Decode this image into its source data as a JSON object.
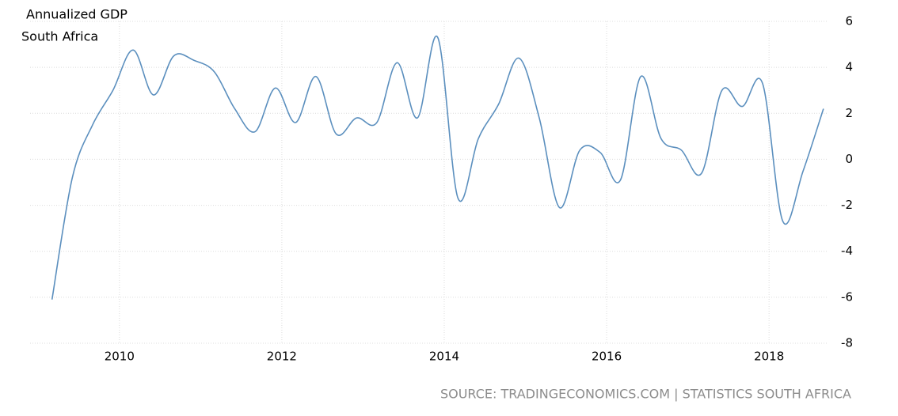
{
  "chart_data": {
    "type": "line",
    "title": "Annualized GDP",
    "subtitle": "South Africa",
    "source": "SOURCE: TRADINGECONOMICS.COM | STATISTICS SOUTH AFRICA",
    "x": [
      2009.17,
      2009.42,
      2009.67,
      2009.92,
      2010.17,
      2010.42,
      2010.67,
      2010.92,
      2011.17,
      2011.42,
      2011.67,
      2011.92,
      2012.17,
      2012.42,
      2012.67,
      2012.92,
      2013.17,
      2013.42,
      2013.67,
      2013.92,
      2014.17,
      2014.42,
      2014.67,
      2014.92,
      2015.17,
      2015.42,
      2015.67,
      2015.92,
      2016.17,
      2016.42,
      2016.67,
      2016.92,
      2017.17,
      2017.42,
      2017.67,
      2017.92,
      2018.17,
      2018.42,
      2018.67
    ],
    "series": [
      {
        "name": "South Africa",
        "color": "#5b8fbe",
        "values": [
          -6.1,
          -0.8,
          1.5,
          3.0,
          4.75,
          2.8,
          4.5,
          4.3,
          3.8,
          2.2,
          1.2,
          3.1,
          1.6,
          3.6,
          1.1,
          1.8,
          1.6,
          4.2,
          1.8,
          5.3,
          -1.7,
          0.9,
          2.4,
          4.4,
          1.8,
          -2.1,
          0.4,
          0.3,
          -0.9,
          3.6,
          0.9,
          0.4,
          -0.6,
          3.0,
          2.3,
          3.3,
          -2.7,
          -0.5,
          2.2
        ]
      }
    ],
    "xlim": [
      2008.9,
      2018.72
    ],
    "xticks": [
      2010,
      2012,
      2014,
      2016,
      2018
    ],
    "ylim": [
      -8,
      6
    ],
    "yticks": [
      -8,
      -6,
      -4,
      -2,
      0,
      2,
      4,
      6
    ],
    "grid": true
  }
}
